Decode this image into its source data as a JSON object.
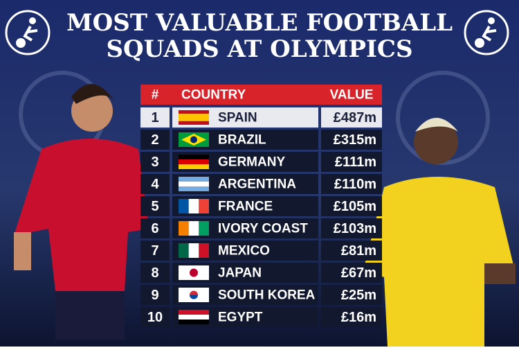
{
  "header": {
    "title_lines": [
      "MOST VALUABLE FOOTBALL",
      "SQUADS AT OLYMPICS"
    ]
  },
  "table": {
    "columns": [
      "#",
      "COUNTRY",
      "VALUE"
    ],
    "rows": [
      [
        1,
        "SPAIN",
        "£487m"
      ],
      [
        2,
        "BRAZIL",
        "£315m"
      ],
      [
        3,
        "GERMANY",
        "£111m"
      ],
      [
        4,
        "ARGENTINA",
        "£110m"
      ],
      [
        5,
        "FRANCE",
        "£105m"
      ],
      [
        6,
        "IVORY COAST",
        "£103m"
      ],
      [
        7,
        "MEXICO",
        "£81m"
      ],
      [
        8,
        "JAPAN",
        "£67m"
      ],
      [
        9,
        "SOUTH KOREA",
        "£25m"
      ],
      [
        10,
        "EGYPT",
        "£16m"
      ]
    ]
  }
}
